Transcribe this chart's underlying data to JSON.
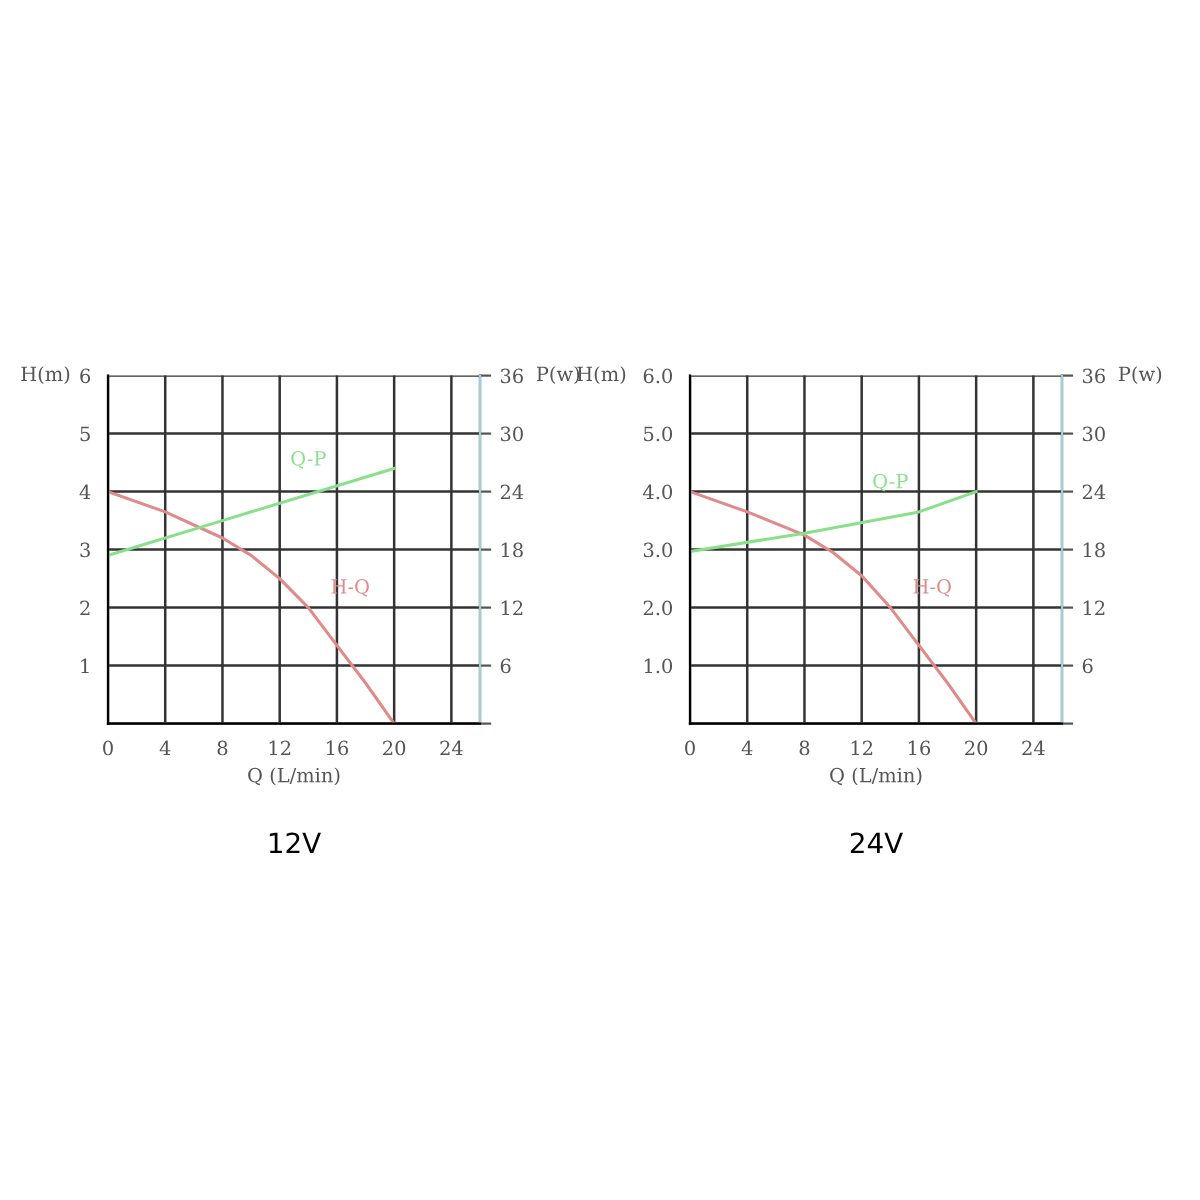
{
  "chart_data": [
    {
      "type": "line",
      "title": "12V",
      "xlabel": "Q (L/min)",
      "ylabel": "H(m)",
      "y2label": "P(w)",
      "xlim": [
        0,
        26
      ],
      "xticks": [
        0,
        4,
        8,
        12,
        16,
        20,
        24
      ],
      "ylim": [
        0,
        6
      ],
      "yticks": [
        {
          "value": 0,
          "label": null
        },
        1,
        2,
        3,
        4,
        5,
        6
      ],
      "y2lim": [
        0,
        36
      ],
      "y2ticks": [
        {
          "value": 0,
          "label": null
        },
        6,
        12,
        18,
        24,
        30,
        36
      ],
      "grid": true,
      "line_style": "solid",
      "series": [
        {
          "color": "#e08a8a",
          "x": [
            0,
            4,
            8,
            10,
            12,
            14,
            16,
            18,
            20
          ],
          "values": [
            4,
            3.65,
            3.2,
            2.9,
            2.5,
            2.0,
            1.35,
            0.7,
            0
          ]
        },
        {
          "color": "#8ae08a",
          "axis": "y2",
          "x": [
            0,
            8,
            20
          ],
          "values": [
            17.4,
            21,
            26.4
          ]
        }
      ],
      "annotations": [
        "H-Q",
        "Q-P"
      ]
    },
    {
      "type": "line",
      "title": "24V",
      "xlabel": "Q (L/min)",
      "ylabel": "H(m)",
      "y2label": "P(w)",
      "xlim": [
        0,
        26
      ],
      "xticks": [
        0,
        4,
        8,
        12,
        16,
        20,
        24
      ],
      "ylim": [
        0,
        6
      ],
      "yticks": [
        {
          "value": 0,
          "label": null
        },
        {
          "value": 1,
          "label": "1.0"
        },
        {
          "value": 2,
          "label": "2.0"
        },
        {
          "value": 3,
          "label": "3.0"
        },
        {
          "value": 4,
          "label": "4.0"
        },
        {
          "value": 5,
          "label": "5.0"
        },
        {
          "value": 6,
          "label": "6.0"
        }
      ],
      "y2lim": [
        0,
        36
      ],
      "y2ticks": [
        {
          "value": 0,
          "label": null
        },
        6,
        12,
        18,
        24,
        30,
        36
      ],
      "grid": true,
      "line_style": "solid",
      "series": [
        {
          "color": "#e08a8a",
          "x": [
            0,
            4,
            8,
            10,
            12,
            14,
            16,
            18,
            20
          ],
          "values": [
            4,
            3.65,
            3.25,
            2.95,
            2.55,
            2.0,
            1.35,
            0.7,
            0
          ]
        },
        {
          "color": "#8ae08a",
          "axis": "y2",
          "x": [
            0,
            8,
            16,
            20
          ],
          "values": [
            17.8,
            19.7,
            21.9,
            24
          ]
        }
      ],
      "annotations": [
        "H-Q",
        "Q-P"
      ]
    }
  ]
}
